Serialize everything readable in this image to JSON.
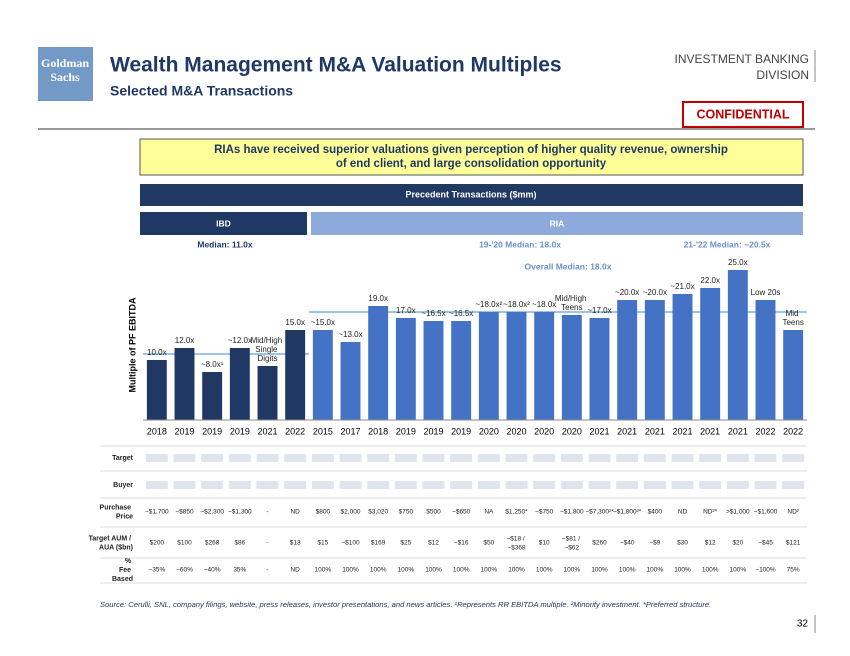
{
  "logo": [
    "Goldman",
    "Sachs"
  ],
  "title": "Wealth Management M&A Valuation Multiples",
  "subtitle": "Selected M&A Transactions",
  "division": [
    "INVESTMENT BANKING",
    "DIVISION"
  ],
  "confidential": "CONFIDENTIAL",
  "callout": [
    "RIAs have received superior valuations given perception of higher quality revenue, ownership",
    "of end client, and large consolidation opportunity"
  ],
  "chart_data": {
    "type": "bar",
    "title": "Precedent Transactions ($mm)",
    "ylabel": "Multiple of PF EBITDA",
    "categories": [
      "2018",
      "2019",
      "2019",
      "2019",
      "2021",
      "2022",
      "2015",
      "2017",
      "2018",
      "2019",
      "2019",
      "2019",
      "2020",
      "2020",
      "2020",
      "2020",
      "2021",
      "2021",
      "2021",
      "2021",
      "2021",
      "2021",
      "2022",
      "2022"
    ],
    "ylim": [
      0,
      26
    ],
    "series": [
      {
        "name": "IBD",
        "color": "#1f3864",
        "values": [
          10,
          12,
          8,
          12,
          9,
          15,
          null,
          null,
          null,
          null,
          null,
          null,
          null,
          null,
          null,
          null,
          null,
          null,
          null,
          null,
          null,
          null,
          null,
          null
        ],
        "value_labels": [
          "10.0x",
          "12.0x",
          "~8.0x¹",
          "~12.0x",
          "Mid/High Single Digits",
          "15.0x",
          null,
          null,
          null,
          null,
          null,
          null,
          null,
          null,
          null,
          null,
          null,
          null,
          null,
          null,
          null,
          null,
          null,
          null
        ]
      },
      {
        "name": "RIA",
        "color": "#4472c4",
        "values": [
          null,
          null,
          null,
          null,
          null,
          null,
          15,
          13,
          19,
          17,
          16.5,
          16.5,
          18,
          18,
          18,
          17.5,
          17,
          20,
          20,
          21,
          22,
          25,
          20,
          15
        ],
        "value_labels": [
          null,
          null,
          null,
          null,
          null,
          null,
          "~15.0x",
          "~13.0x",
          "19.0x",
          "17.0x",
          "~16.5x",
          "~16.5x",
          "~18.0x²",
          "~18.0x²",
          "~18.0x",
          "Mid/High Teens",
          "~17.0x",
          "~20.0x",
          "~20.0x",
          "~21.0x",
          "22.0x",
          "25.0x",
          "Low 20s",
          "Mid Teens"
        ]
      }
    ],
    "median_lines": [
      {
        "label": "Median: 11.0x",
        "value": 11
      },
      {
        "label": "Overall Median: 18.0x",
        "value": 18
      }
    ],
    "annotations": [
      "19-'20 Median: 18.0x",
      "21-'22 Median: ~20.5x"
    ]
  },
  "table": {
    "rows": [
      {
        "label": "Target",
        "cells": []
      },
      {
        "label": "Buyer",
        "cells": []
      },
      {
        "label": "Purchase Price",
        "cells": [
          "~$1,700",
          "~$850",
          "~$2,300",
          "~$1,300",
          "-",
          "ND",
          "$800",
          "$2,000",
          "$3,020",
          "$750",
          "$500",
          "~$650",
          "NA",
          "$1,250*",
          "~$750",
          "~$1,800",
          "~$7,300²*",
          "~$1,800²*",
          "$400",
          "ND",
          "ND²*",
          ">$1,000",
          "~$1,600",
          "ND²"
        ]
      },
      {
        "label": "Target AUM / AUA ($bn)",
        "cells": [
          "$200",
          "$100",
          "$268",
          "$86",
          "-",
          "$13",
          "$15",
          "~$100",
          "$169",
          "$25",
          "$12",
          "~$16",
          "$50",
          "~$18 / ~$368",
          "$10",
          "~$81 / ~$62",
          "$260",
          "~$40",
          "~$9",
          "$30",
          "$12",
          "$20",
          "~$45",
          "$121"
        ]
      },
      {
        "label": "% Fee Based",
        "cells": [
          "~35%",
          "~60%",
          "~40%",
          "35%",
          "-",
          "ND",
          "100%",
          "100%",
          "100%",
          "100%",
          "100%",
          "100%",
          "100%",
          "100%",
          "100%",
          "100%",
          "100%",
          "100%",
          "100%",
          "100%",
          "100%",
          "100%",
          "~100%",
          "75%"
        ]
      }
    ]
  },
  "footnote": "Source: Cerulli, SNL, company filings, website, press releases, investor presentations, and news articles. ¹Represents RR EBITDA multiple. ²Minority investment. *Preferred structure.",
  "page_number": "32"
}
